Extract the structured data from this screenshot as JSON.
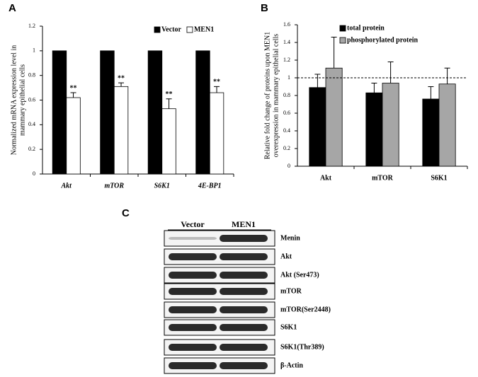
{
  "chart_data": [
    {
      "type": "bar",
      "panel": "A",
      "ylabel": [
        "Normalized mRNA expression level in",
        "mammary epithelial cells"
      ],
      "categories": [
        "Akt",
        "mTOR",
        "S6K1",
        "4E-BP1"
      ],
      "series": [
        {
          "name": "Vector",
          "color": "#000000",
          "values": [
            1,
            1,
            1,
            1
          ]
        },
        {
          "name": "MEN1",
          "color": "#ffffff",
          "values": [
            0.62,
            0.71,
            0.53,
            0.66
          ],
          "errors": [
            0.04,
            0.03,
            0.08,
            0.05
          ],
          "annotations": [
            "**",
            "**",
            "**",
            "**"
          ]
        }
      ],
      "ylim": [
        0,
        1.2
      ],
      "yticks": [
        0,
        0.2,
        0.4,
        0.6,
        0.8,
        1,
        1.2
      ]
    },
    {
      "type": "bar",
      "panel": "B",
      "ylabel": [
        "Relative fold change of proteins upon MEN1",
        "overexpression in mammary epithelial cells"
      ],
      "categories": [
        "Akt",
        "mTOR",
        "S6K1"
      ],
      "series": [
        {
          "name": "total protein",
          "color": "#000000",
          "values": [
            0.89,
            0.83,
            0.76
          ],
          "errors": [
            0.15,
            0.11,
            0.14
          ]
        },
        {
          "name": "phosphorylated protein",
          "color": "#a6a6a6",
          "values": [
            1.11,
            0.94,
            0.93
          ],
          "errors": [
            0.35,
            0.24,
            0.18
          ]
        }
      ],
      "hline": 1,
      "ylim": [
        0,
        1.6
      ],
      "yticks": [
        0,
        0.2,
        0.4,
        0.6,
        0.8,
        1,
        1.2,
        1.4,
        1.6
      ]
    }
  ],
  "blot": {
    "panel": "C",
    "columns": [
      "Vector",
      "MEN1"
    ],
    "rows": [
      "Menin",
      "Akt",
      "Akt (Ser473)",
      "mTOR",
      "mTOR(Ser2448)",
      "S6K1",
      "S6K1(Thr389)",
      "β-Actin"
    ]
  }
}
